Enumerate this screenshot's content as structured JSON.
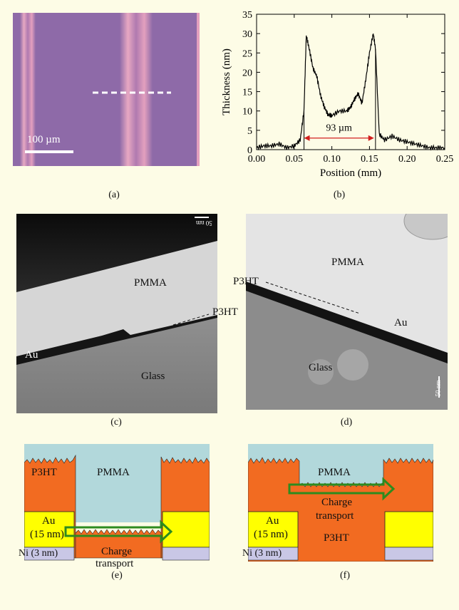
{
  "panel_a": {
    "caption": "(a)",
    "scalebar_label": "100 µm"
  },
  "panel_b": {
    "caption": "(b)",
    "annotation": "93 µm"
  },
  "panel_c": {
    "caption": "(c)",
    "labels": {
      "pmma": "PMMA",
      "p3ht": "P3HT",
      "au": "Au",
      "glass": "Glass",
      "scale": "50 nm"
    }
  },
  "panel_d": {
    "caption": "(d)",
    "labels": {
      "pmma": "PMMA",
      "p3ht": "P3HT",
      "au": "Au",
      "glass": "Glass",
      "scale": "50 nm"
    }
  },
  "panel_e": {
    "caption": "(e)",
    "labels": {
      "p3ht": "P3HT",
      "pmma": "PMMA",
      "au": "Au",
      "au_thickness": "(15 nm)",
      "charge": "Charge",
      "transport": "transport",
      "ni": "Ni (3 nm)"
    }
  },
  "panel_f": {
    "caption": "(f)",
    "labels": {
      "pmma": "PMMA",
      "charge": "Charge",
      "transport": "transport",
      "au": "Au",
      "au_thickness": "(15 nm)",
      "p3ht": "P3HT",
      "ni": "Ni (3 nm)"
    }
  },
  "colors": {
    "background": "#FDFCE6",
    "pmma": "#B2D8DB",
    "p3ht": "#F26B21",
    "au": "#FFFF00",
    "ni": "#C9C7E6",
    "arrow": "#2E8B1E",
    "microscope": "#8E6AA8"
  },
  "chart_data": {
    "type": "line",
    "xlabel": "Position (mm)",
    "ylabel": "Thickness (nm)",
    "xlim": [
      0,
      0.25
    ],
    "ylim": [
      0,
      35
    ],
    "xticks": [
      "0.00",
      "0.05",
      "0.10",
      "0.15",
      "0.20",
      "0.25"
    ],
    "yticks": [
      "0",
      "5",
      "10",
      "15",
      "20",
      "25",
      "30",
      "35"
    ],
    "x": [
      0.0,
      0.01,
      0.02,
      0.03,
      0.04,
      0.05,
      0.058,
      0.063,
      0.066,
      0.07,
      0.075,
      0.08,
      0.085,
      0.09,
      0.095,
      0.1,
      0.11,
      0.12,
      0.125,
      0.13,
      0.135,
      0.14,
      0.145,
      0.15,
      0.155,
      0.158,
      0.163,
      0.17,
      0.18,
      0.19,
      0.2,
      0.21,
      0.22,
      0.23,
      0.24,
      0.25
    ],
    "y": [
      0.5,
      1.0,
      1.0,
      1.5,
      0.5,
      1.0,
      2.5,
      10,
      29.5,
      26,
      21,
      19,
      14,
      11,
      9.0,
      8.8,
      10,
      10,
      11,
      13,
      14.5,
      12,
      18,
      25,
      30,
      26,
      4,
      2.5,
      3.5,
      2.5,
      2.0,
      1.5,
      1.0,
      0.5,
      0.5,
      0.5
    ],
    "annotation": {
      "text": "93 µm",
      "x_start": 0.063,
      "x_end": 0.156,
      "y": 3.0
    }
  }
}
